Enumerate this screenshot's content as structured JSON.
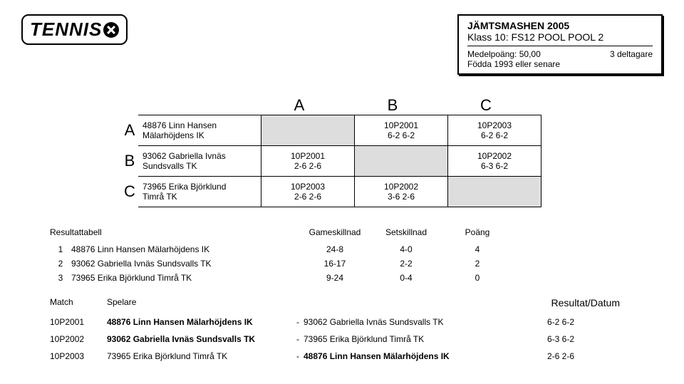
{
  "logo": {
    "text": "TENNIS"
  },
  "header": {
    "title": "JÄMTSMASHEN 2005",
    "class": "Klass 10: FS12 POOL POOL 2",
    "avg_label": "Medelpoäng: 50,00",
    "participants": "3 deltagare",
    "born": "Födda 1993 eller senare"
  },
  "grid": {
    "col_labels": [
      "A",
      "B",
      "C"
    ],
    "rows": [
      {
        "label": "A",
        "name": "48876 Linn Hansen",
        "club": "Mälarhöjdens IK",
        "cells": [
          {
            "diag": true
          },
          {
            "top": "10P2001",
            "bottom": "6-2 6-2"
          },
          {
            "top": "10P2003",
            "bottom": "6-2 6-2"
          }
        ]
      },
      {
        "label": "B",
        "name": "93062 Gabriella Ivnäs",
        "club": "Sundsvalls TK",
        "cells": [
          {
            "top": "10P2001",
            "bottom": "2-6 2-6"
          },
          {
            "diag": true
          },
          {
            "top": "10P2002",
            "bottom": "6-3 6-2"
          }
        ]
      },
      {
        "label": "C",
        "name": "73965 Erika Björklund",
        "club": "Timrå TK",
        "cells": [
          {
            "top": "10P2003",
            "bottom": "2-6 2-6"
          },
          {
            "top": "10P2002",
            "bottom": "3-6 2-6"
          },
          {
            "diag": true
          }
        ]
      }
    ]
  },
  "results": {
    "title": "Resultattabell",
    "cols": [
      "Gameskillnad",
      "Setskillnad",
      "Poäng"
    ],
    "rows": [
      {
        "rank": "1",
        "name": "48876 Linn Hansen Mälarhöjdens IK",
        "games": "24-8",
        "sets": "4-0",
        "pts": "4"
      },
      {
        "rank": "2",
        "name": "93062 Gabriella Ivnäs Sundsvalls TK",
        "games": "16-17",
        "sets": "2-2",
        "pts": "2"
      },
      {
        "rank": "3",
        "name": "73965 Erika Björklund Timrå TK",
        "games": "9-24",
        "sets": "0-4",
        "pts": "0"
      }
    ]
  },
  "matches": {
    "h1": "Match",
    "h2": "Spelare",
    "h3": "Resultat/Datum",
    "rows": [
      {
        "id": "10P2001",
        "p1": "48876 Linn Hansen Mälarhöjdens IK",
        "p1bold": true,
        "p2": "93062 Gabriella Ivnäs Sundsvalls TK",
        "p2bold": false,
        "score": "6-2 6-2"
      },
      {
        "id": "10P2002",
        "p1": "93062 Gabriella Ivnäs Sundsvalls TK",
        "p1bold": true,
        "p2": "73965 Erika Björklund Timrå TK",
        "p2bold": false,
        "score": "6-3 6-2"
      },
      {
        "id": "10P2003",
        "p1": "73965 Erika Björklund Timrå TK",
        "p1bold": false,
        "p2": "48876 Linn Hansen Mälarhöjdens IK",
        "p2bold": true,
        "score": "2-6 2-6"
      }
    ]
  }
}
